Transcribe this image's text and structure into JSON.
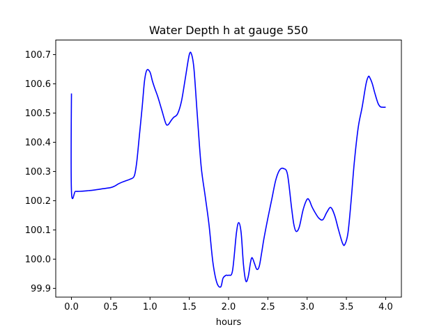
{
  "chart_data": {
    "type": "line",
    "title": "Water Depth h at gauge 550",
    "xlabel": "hours",
    "ylabel": "",
    "xlim": [
      -0.2,
      4.2
    ],
    "ylim": [
      99.87,
      100.75
    ],
    "xticks": [
      0.0,
      0.5,
      1.0,
      1.5,
      2.0,
      2.5,
      3.0,
      3.5,
      4.0
    ],
    "xtick_labels": [
      "0.0",
      "0.5",
      "1.0",
      "1.5",
      "2.0",
      "2.5",
      "3.0",
      "3.5",
      "4.0"
    ],
    "yticks": [
      99.9,
      100.0,
      100.1,
      100.2,
      100.3,
      100.4,
      100.5,
      100.6,
      100.7
    ],
    "ytick_labels": [
      "99.9",
      "100.0",
      "100.1",
      "100.2",
      "100.3",
      "100.4",
      "100.5",
      "100.6",
      "100.7"
    ],
    "grid": false,
    "series": [
      {
        "color": "#0000ff",
        "x": [
          0.0,
          0.0,
          0.05,
          0.1,
          0.2,
          0.3,
          0.4,
          0.5,
          0.55,
          0.6,
          0.65,
          0.7,
          0.75,
          0.8,
          0.83,
          0.86,
          0.9,
          0.93,
          0.96,
          1.0,
          1.03,
          1.06,
          1.1,
          1.15,
          1.2,
          1.23,
          1.27,
          1.3,
          1.35,
          1.4,
          1.45,
          1.5,
          1.53,
          1.56,
          1.6,
          1.65,
          1.7,
          1.75,
          1.8,
          1.85,
          1.9,
          1.93,
          1.97,
          2.0,
          2.05,
          2.1,
          2.13,
          2.16,
          2.19,
          2.22,
          2.25,
          2.28,
          2.3,
          2.33,
          2.36,
          2.39,
          2.42,
          2.45,
          2.5,
          2.55,
          2.6,
          2.65,
          2.7,
          2.75,
          2.8,
          2.83,
          2.86,
          2.9,
          2.95,
          3.0,
          3.03,
          3.06,
          3.1,
          3.15,
          3.2,
          3.25,
          3.3,
          3.35,
          3.4,
          3.45,
          3.48,
          3.52,
          3.56,
          3.6,
          3.65,
          3.7,
          3.75,
          3.78,
          3.8,
          3.83,
          3.86,
          3.9,
          3.93,
          3.96,
          4.0
        ],
        "y": [
          100.567,
          100.232,
          100.232,
          100.232,
          100.234,
          100.237,
          100.241,
          100.245,
          100.25,
          100.258,
          100.264,
          100.269,
          100.274,
          100.285,
          100.33,
          100.41,
          100.52,
          100.61,
          100.647,
          100.64,
          100.61,
          100.585,
          100.555,
          100.51,
          100.465,
          100.46,
          100.475,
          100.485,
          100.497,
          100.54,
          100.62,
          100.7,
          100.7,
          100.65,
          100.5,
          100.32,
          100.22,
          100.12,
          99.99,
          99.92,
          99.905,
          99.935,
          99.945,
          99.945,
          99.96,
          100.09,
          100.125,
          100.09,
          99.98,
          99.925,
          99.94,
          99.99,
          100.005,
          99.985,
          99.965,
          99.975,
          100.02,
          100.07,
          100.14,
          100.205,
          100.27,
          100.305,
          100.31,
          100.29,
          100.18,
          100.12,
          100.095,
          100.11,
          100.17,
          100.205,
          100.2,
          100.18,
          100.16,
          100.14,
          100.135,
          100.16,
          100.177,
          100.15,
          100.1,
          100.055,
          100.05,
          100.09,
          100.2,
          100.33,
          100.45,
          100.52,
          100.6,
          100.625,
          100.62,
          100.6,
          100.57,
          100.535,
          100.522,
          100.52,
          100.52
        ]
      }
    ]
  }
}
